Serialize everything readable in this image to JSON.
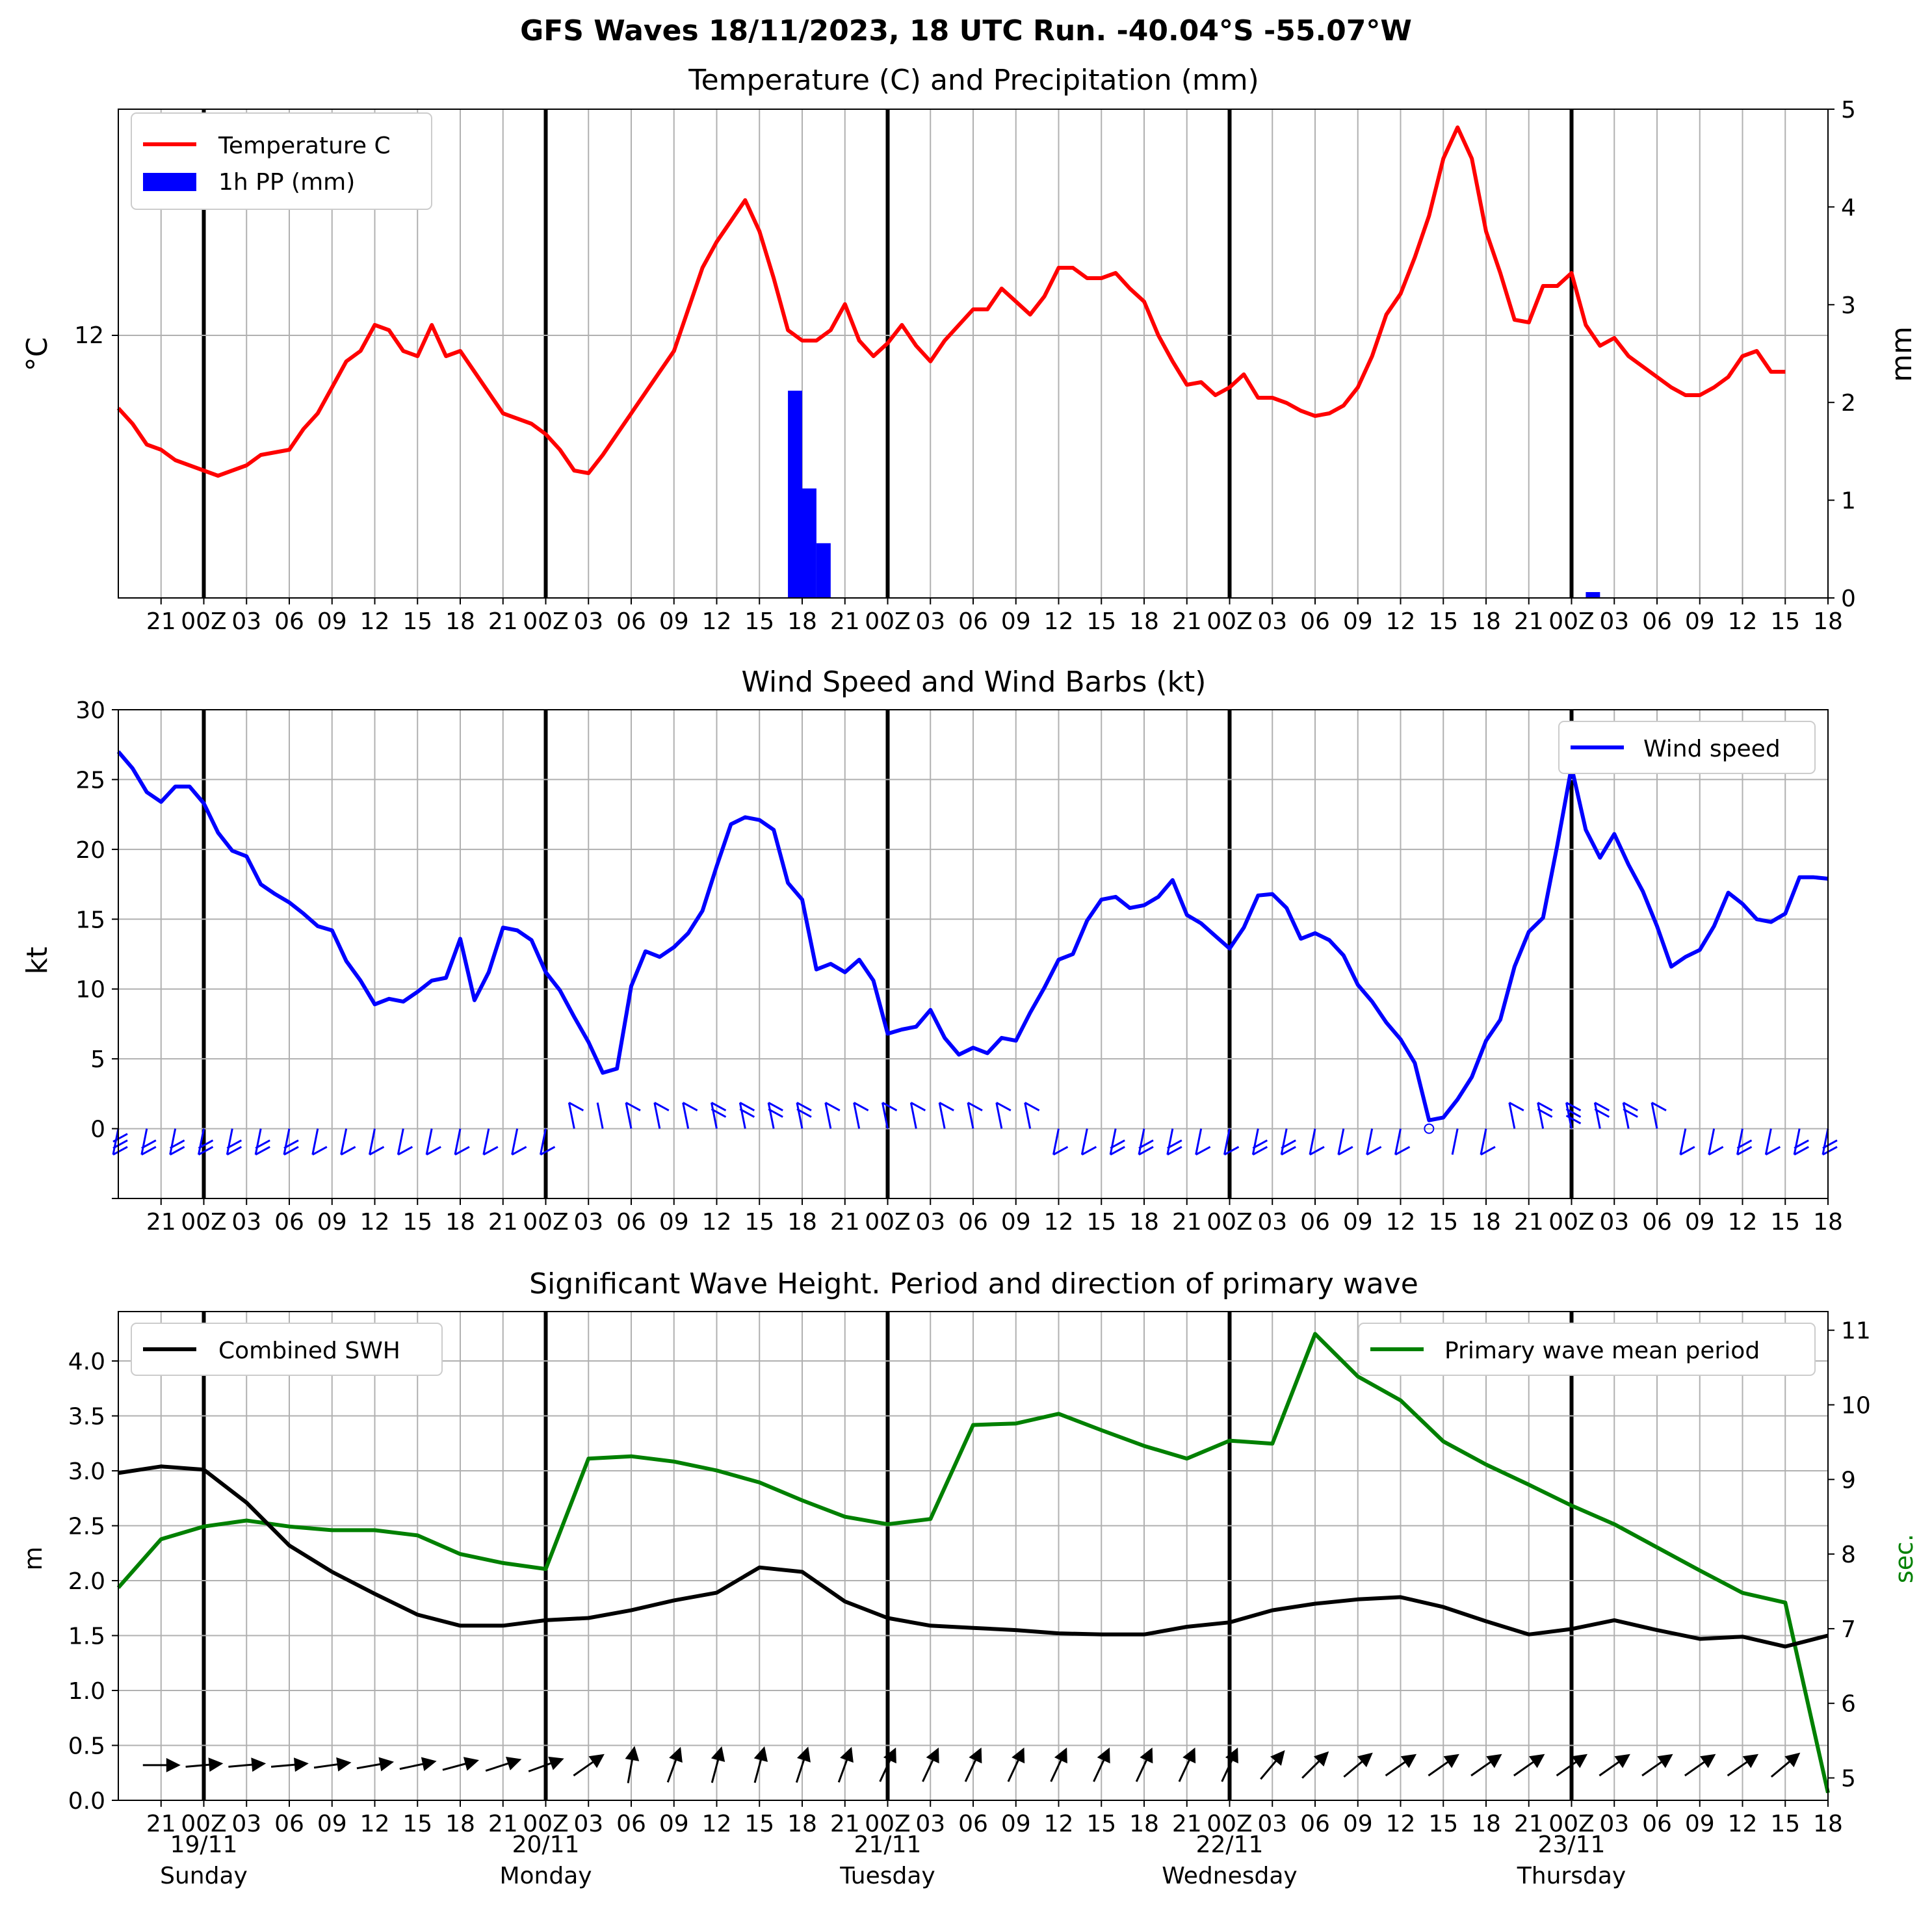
{
  "suptitle": "GFS Waves 18/11/2023, 18 UTC Run. -40.04°S -55.07°W",
  "colors": {
    "temperature": "#ff0000",
    "precip": "#0000ff",
    "wind": "#0000ff",
    "swh": "#000000",
    "period": "#008000",
    "grid": "#b0b0b0",
    "day_line": "#000000"
  },
  "x_ticks": [
    "21",
    "00Z",
    "03",
    "06",
    "09",
    "12",
    "15",
    "18",
    "21",
    "00Z",
    "03",
    "06",
    "09",
    "12",
    "15",
    "18",
    "21",
    "00Z",
    "03",
    "06",
    "09",
    "12",
    "15",
    "18",
    "21",
    "00Z",
    "03",
    "06",
    "09",
    "12",
    "15",
    "18",
    "21",
    "00Z",
    "03",
    "06",
    "09",
    "12",
    "15",
    "18"
  ],
  "day_labels": [
    {
      "date": "19/11",
      "day": "Sunday"
    },
    {
      "date": "20/11",
      "day": "Monday"
    },
    {
      "date": "21/11",
      "day": "Tuesday"
    },
    {
      "date": "22/11",
      "day": "Wednesday"
    },
    {
      "date": "23/11",
      "day": "Thursday"
    }
  ],
  "chart_data": [
    {
      "type": "line",
      "title": "Temperature (C) and Precipitation (mm)",
      "ylabel": "°C",
      "ylabel_right": "mm",
      "y_ticks": [
        "12"
      ],
      "y2_ticks": [
        "0",
        "1",
        "2",
        "3",
        "4",
        "5"
      ],
      "y2lim": [
        0,
        5
      ],
      "legend": {
        "placement": "top-left",
        "entries": [
          "Temperature C",
          "1h PP (mm)"
        ]
      },
      "grid": true,
      "temperature_c": [
        10.6,
        10.3,
        9.9,
        9.8,
        9.6,
        9.5,
        9.4,
        9.3,
        9.4,
        9.5,
        9.7,
        9.75,
        9.8,
        10.2,
        10.5,
        11.0,
        11.5,
        11.7,
        12.2,
        12.1,
        11.7,
        11.6,
        12.2,
        11.6,
        11.7,
        11.3,
        10.9,
        10.5,
        10.4,
        10.3,
        10.1,
        9.8,
        9.4,
        9.35,
        9.7,
        10.1,
        10.5,
        10.9,
        11.3,
        11.7,
        12.5,
        13.3,
        13.8,
        14.2,
        14.6,
        14.0,
        13.1,
        12.1,
        11.9,
        11.9,
        12.1,
        12.6,
        11.9,
        11.6,
        11.85,
        12.2,
        11.8,
        11.5,
        11.9,
        12.2,
        12.5,
        12.5,
        12.9,
        12.65,
        12.4,
        12.75,
        13.3,
        13.3,
        13.1,
        13.1,
        13.2,
        12.9,
        12.65,
        12.0,
        11.5,
        11.05,
        11.1,
        10.85,
        11.0,
        11.25,
        10.8,
        10.8,
        10.7,
        10.55,
        10.45,
        10.5,
        10.65,
        11.0,
        11.6,
        12.4,
        12.8,
        13.5,
        14.3,
        15.4,
        16.0,
        15.4,
        14.0,
        13.2,
        12.3,
        12.25,
        12.95,
        12.95,
        13.2,
        12.2,
        11.8,
        11.95,
        11.6,
        11.4,
        11.2,
        11.0,
        10.85,
        10.85,
        11.0,
        11.2,
        11.6,
        11.7,
        11.3,
        11.3
      ],
      "precip_mm": {
        "x_index": [
          47,
          48,
          49,
          103
        ],
        "values": [
          2.12,
          1.12,
          0.56,
          0.06
        ]
      }
    },
    {
      "type": "line",
      "title": "Wind Speed and Wind Barbs (kt)",
      "ylabel": "kt",
      "y_ticks": [
        "0",
        "5",
        "10",
        "15",
        "20",
        "25",
        "30"
      ],
      "ylim": [
        -5,
        30
      ],
      "legend": {
        "placement": "top-right",
        "entries": [
          "Wind speed"
        ]
      },
      "grid": true,
      "wind_speed_kt": [
        27.0,
        25.8,
        24.1,
        23.4,
        24.5,
        24.5,
        23.3,
        21.2,
        19.9,
        19.5,
        17.5,
        16.8,
        16.2,
        15.4,
        14.5,
        14.2,
        12.0,
        10.6,
        8.9,
        9.3,
        9.1,
        9.8,
        10.6,
        10.8,
        13.6,
        9.2,
        11.2,
        14.4,
        14.2,
        13.5,
        11.2,
        9.9,
        8.0,
        6.2,
        4.0,
        4.3,
        10.2,
        12.7,
        12.3,
        13.0,
        14.0,
        15.6,
        18.8,
        21.8,
        22.3,
        22.1,
        21.4,
        17.6,
        16.4,
        11.4,
        11.8,
        11.2,
        12.1,
        10.6,
        6.8,
        7.1,
        7.3,
        8.5,
        6.5,
        5.3,
        5.8,
        5.4,
        6.5,
        6.3,
        8.3,
        10.1,
        12.1,
        12.5,
        14.9,
        16.4,
        16.6,
        15.8,
        16.0,
        16.6,
        17.8,
        15.3,
        14.7,
        13.8,
        12.9,
        14.4,
        16.7,
        16.8,
        15.8,
        13.6,
        14.0,
        13.5,
        12.4,
        10.3,
        9.1,
        7.6,
        6.4,
        4.7,
        0.6,
        0.8,
        2.1,
        3.7,
        6.3,
        7.8,
        11.6,
        14.1,
        15.1,
        20.3,
        25.9,
        21.4,
        19.4,
        21.1,
        18.9,
        17.0,
        14.5,
        11.6,
        12.3,
        12.8,
        14.5,
        16.9,
        16.1,
        15.0,
        14.8,
        15.4,
        18.0,
        18.0,
        17.9
      ]
    },
    {
      "type": "line",
      "title": "Significant Wave Height. Period and direction of primary wave",
      "ylabel": "m",
      "ylabel_right": "sec.",
      "y_ticks": [
        "0.0",
        "0.5",
        "1.0",
        "1.5",
        "2.0",
        "2.5",
        "3.0",
        "3.5",
        "4.0"
      ],
      "y2_ticks": [
        "5",
        "6",
        "7",
        "8",
        "9",
        "10",
        "11"
      ],
      "ylim": [
        0,
        4.45
      ],
      "y2lim": [
        4.7,
        11.25
      ],
      "legend": {
        "placement": "top-left / top-right",
        "entries": [
          "Combined SWH",
          "Primary wave mean period"
        ]
      },
      "grid": true,
      "x_hours_from_start": [
        0,
        3,
        6,
        9,
        12,
        15,
        18,
        21,
        24,
        27,
        30,
        33,
        36,
        39,
        42,
        45,
        48,
        51,
        54,
        57,
        60,
        63,
        66,
        69,
        72,
        75,
        78,
        81,
        84,
        87,
        90,
        93,
        96,
        99,
        102,
        105,
        108,
        111,
        114,
        117,
        120
      ],
      "swh_m": [
        2.98,
        3.04,
        3.01,
        2.71,
        2.32,
        2.08,
        1.88,
        1.69,
        1.59,
        1.59,
        1.64,
        1.66,
        1.73,
        1.82,
        1.89,
        2.12,
        2.08,
        1.81,
        1.66,
        1.59,
        1.57,
        1.55,
        1.52,
        1.51,
        1.51,
        1.58,
        1.62,
        1.73,
        1.79,
        1.83,
        1.85,
        1.76,
        1.63,
        1.51,
        1.56,
        1.64,
        1.55,
        1.47,
        1.49,
        1.4,
        1.5
      ],
      "period_s": [
        7.55,
        8.2,
        8.37,
        8.45,
        8.37,
        8.32,
        8.32,
        8.25,
        8.0,
        7.88,
        7.8,
        9.28,
        9.31,
        9.24,
        9.12,
        8.96,
        8.72,
        8.5,
        8.4,
        8.47,
        9.73,
        9.75,
        9.88,
        9.66,
        9.45,
        9.28,
        9.52,
        9.48,
        10.95,
        10.38,
        10.06,
        9.51,
        9.2,
        8.93,
        8.65,
        8.4,
        8.09,
        7.78,
        7.48,
        7.35,
        4.8
      ],
      "wave_direction_arrows_deg": [
        0,
        0,
        5,
        5,
        5,
        8,
        10,
        12,
        15,
        18,
        20,
        35,
        80,
        70,
        75,
        75,
        72,
        70,
        65,
        65,
        65,
        65,
        65,
        65,
        65,
        65,
        65,
        50,
        45,
        40,
        35,
        35,
        35,
        35,
        35,
        35,
        35,
        35,
        35,
        40,
        40
      ]
    }
  ]
}
